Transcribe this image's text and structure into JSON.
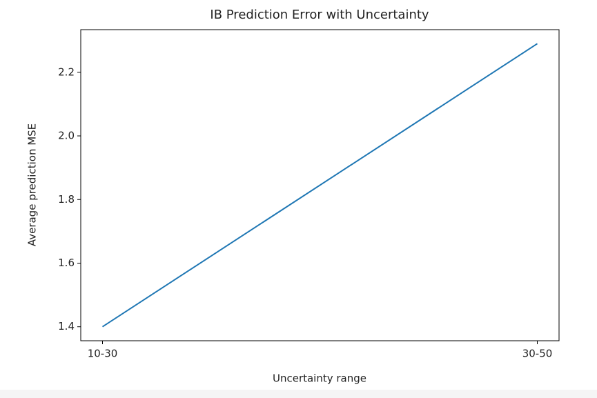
{
  "chart_data": {
    "type": "line",
    "title": "IB Prediction Error with Uncertainty",
    "x_label": "Uncertainty range",
    "y_label": "Average prediction MSE",
    "categories": [
      "10-30",
      "30-50"
    ],
    "values": [
      1.4,
      2.29
    ],
    "color": "#1f77b4",
    "ylim": [
      1.356,
      2.334
    ],
    "yticks": [
      1.4,
      1.6,
      1.8,
      {
        "value": 2,
        "label": "2.0"
      },
      2.2
    ]
  }
}
